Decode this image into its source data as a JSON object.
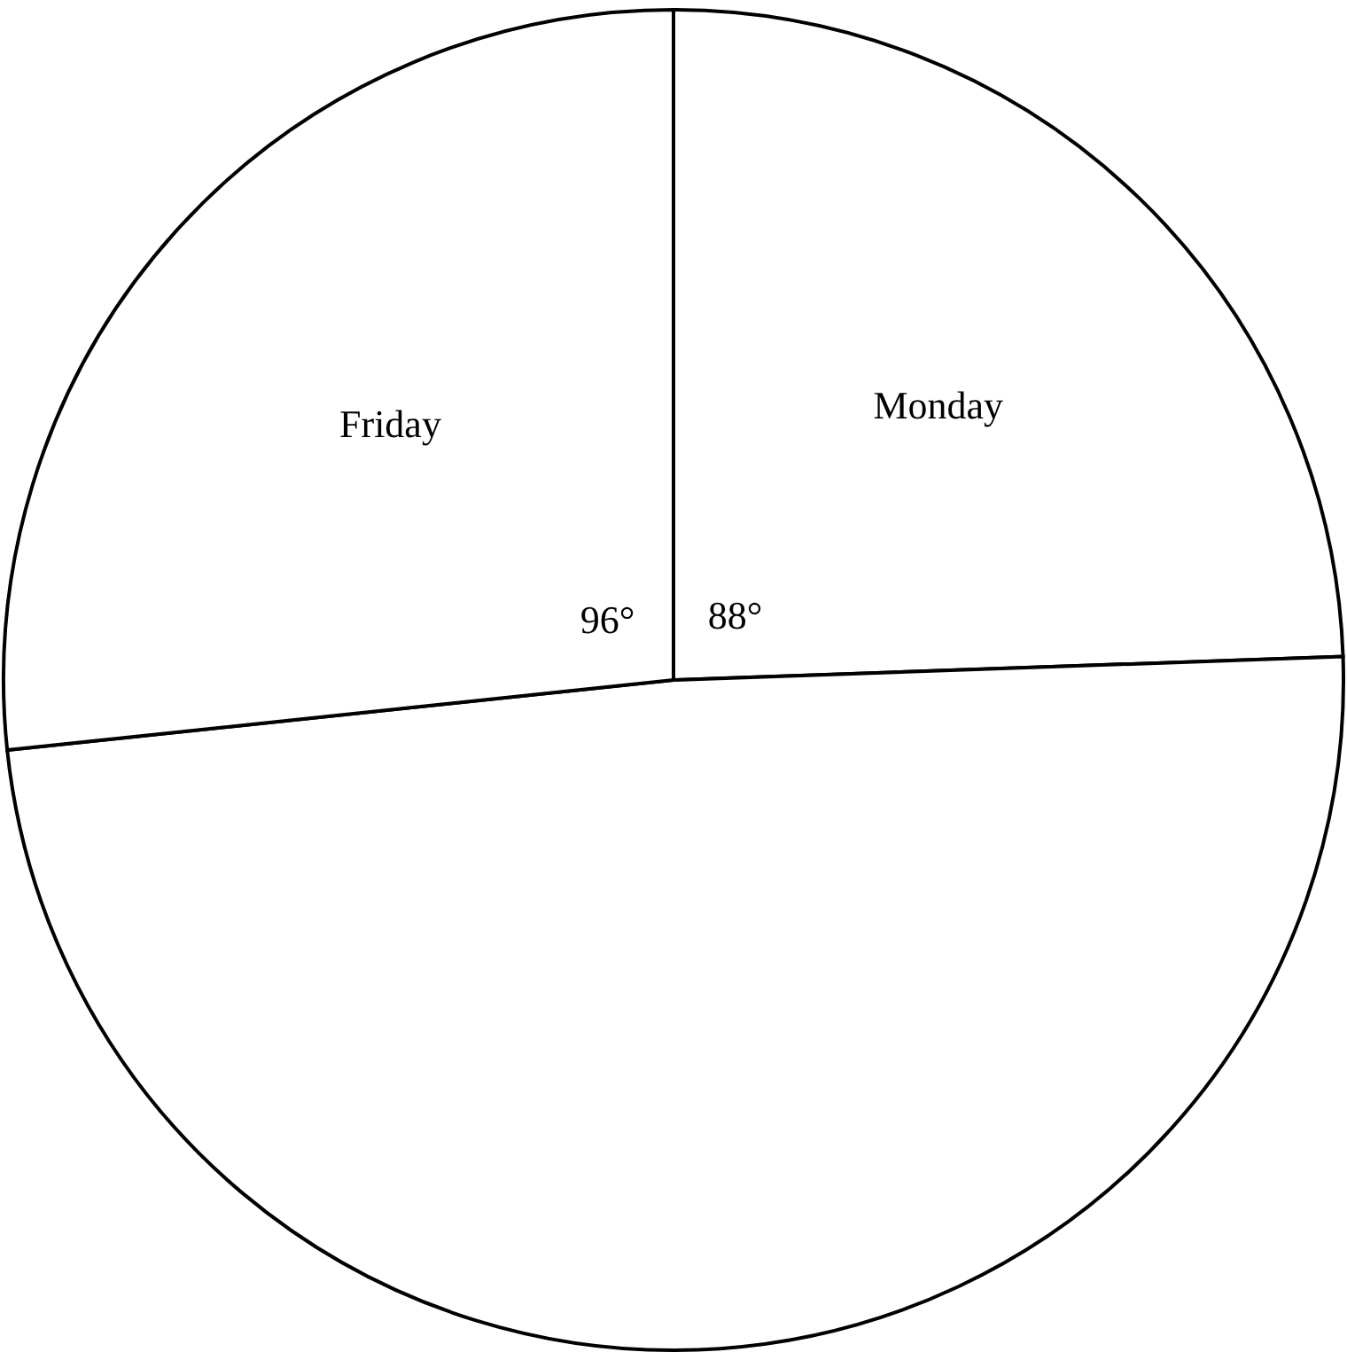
{
  "chart_data": {
    "type": "pie",
    "categories": [
      "Monday",
      null,
      "Friday"
    ],
    "values": [
      88,
      176,
      96
    ],
    "colors": [
      "#ffffff",
      "#ffffff",
      "#ffffff"
    ],
    "value_labels": [
      "88°",
      null,
      "96°"
    ]
  }
}
